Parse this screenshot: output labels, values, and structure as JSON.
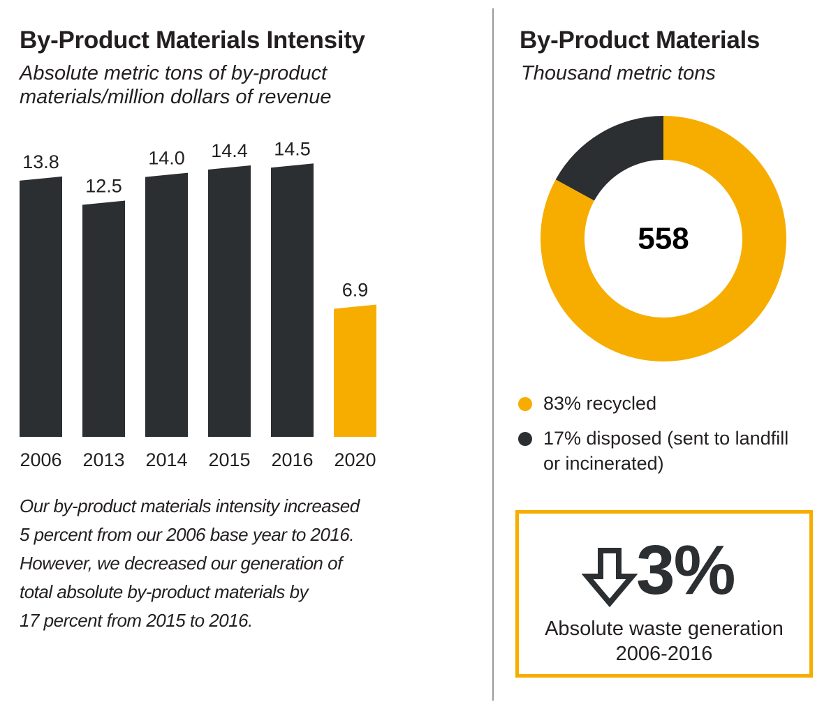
{
  "left_panel": {
    "title": "By-Product Materials Intensity",
    "subtitle_lines": [
      "Absolute metric tons of by-product",
      "materials/million dollars of revenue"
    ],
    "note_lines": [
      "Our by-product materials intensity increased",
      "5 percent from our 2006 base year to 2016.",
      "However, we decreased our generation of",
      "total absolute by-product materials by",
      "17 percent from 2015 to 2016."
    ]
  },
  "right_panel": {
    "title": "By-Product Materials",
    "subtitle": "Thousand metric tons",
    "donut_center": "558",
    "legend": [
      {
        "lines": [
          "83% recycled"
        ],
        "color": "#f7ad00"
      },
      {
        "lines": [
          "17% disposed (sent to landfill",
          "or incinerated)"
        ],
        "color": "#2b2f31"
      }
    ],
    "kpi": {
      "arrow_icon": "arrow-down-outline-icon",
      "value": "3%",
      "caption_lines": [
        "Absolute waste generation",
        "2006-2016"
      ]
    }
  },
  "chart_data": [
    {
      "type": "bar",
      "title": "By-Product Materials Intensity",
      "subtitle": "Absolute metric tons of by-product materials/million dollars of revenue",
      "categories": [
        "2006",
        "2013",
        "2014",
        "2015",
        "2016",
        "2020"
      ],
      "values": [
        13.8,
        12.5,
        14.0,
        14.4,
        14.5,
        6.9
      ],
      "value_labels": [
        "13.8",
        "12.5",
        "14.0",
        "14.4",
        "14.5",
        "6.9"
      ],
      "colors": [
        "#2b2f31",
        "#2b2f31",
        "#2b2f31",
        "#2b2f31",
        "#2b2f31",
        "#f7ad00"
      ],
      "ylim": [
        0,
        15
      ],
      "grid": false
    },
    {
      "type": "pie",
      "title": "By-Product Materials",
      "subtitle": "Thousand metric tons",
      "total": 558,
      "labels": [
        "recycled",
        "disposed (sent to landfill or incinerated)"
      ],
      "values": [
        83,
        17
      ],
      "colors": [
        "#f7ad00",
        "#2b2f31"
      ],
      "donut": true,
      "legend_position": "bottom"
    }
  ]
}
